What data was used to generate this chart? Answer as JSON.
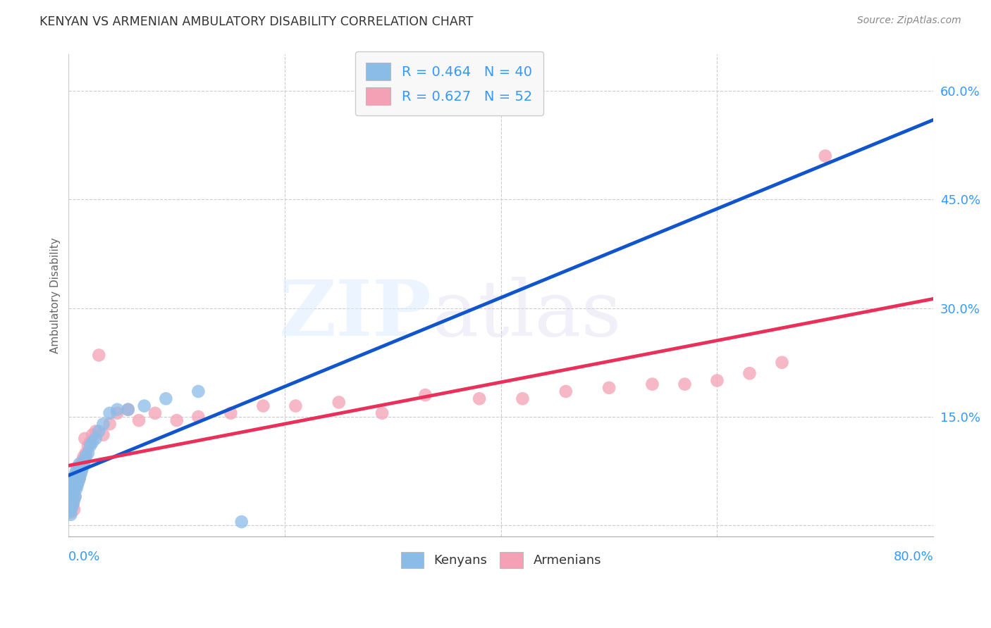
{
  "title": "KENYAN VS ARMENIAN AMBULATORY DISABILITY CORRELATION CHART",
  "source": "Source: ZipAtlas.com",
  "ylabel": "Ambulatory Disability",
  "xmin": 0.0,
  "xmax": 0.8,
  "ymin": -0.015,
  "ymax": 0.65,
  "yticks": [
    0.0,
    0.15,
    0.3,
    0.45,
    0.6
  ],
  "ytick_labels": [
    "",
    "15.0%",
    "30.0%",
    "45.0%",
    "60.0%"
  ],
  "kenyan_R": 0.464,
  "kenyan_N": 40,
  "armenian_R": 0.627,
  "armenian_N": 52,
  "kenyan_color": "#8bbce8",
  "armenian_color": "#f4a0b5",
  "kenyan_line_color": "#1155cc",
  "armenian_line_color": "#e8305a",
  "kenyan_points_x": [
    0.001,
    0.002,
    0.002,
    0.003,
    0.003,
    0.004,
    0.004,
    0.004,
    0.005,
    0.005,
    0.005,
    0.006,
    0.006,
    0.007,
    0.007,
    0.008,
    0.008,
    0.009,
    0.009,
    0.01,
    0.01,
    0.011,
    0.012,
    0.013,
    0.014,
    0.015,
    0.016,
    0.018,
    0.02,
    0.022,
    0.025,
    0.028,
    0.032,
    0.038,
    0.045,
    0.055,
    0.07,
    0.09,
    0.12,
    0.16
  ],
  "kenyan_points_y": [
    0.02,
    0.015,
    0.06,
    0.025,
    0.065,
    0.03,
    0.045,
    0.055,
    0.035,
    0.05,
    0.06,
    0.04,
    0.07,
    0.05,
    0.075,
    0.055,
    0.08,
    0.06,
    0.075,
    0.065,
    0.085,
    0.07,
    0.075,
    0.08,
    0.085,
    0.09,
    0.095,
    0.1,
    0.11,
    0.115,
    0.12,
    0.13,
    0.14,
    0.155,
    0.16,
    0.16,
    0.165,
    0.175,
    0.185,
    0.005
  ],
  "armenian_points_x": [
    0.001,
    0.002,
    0.003,
    0.003,
    0.004,
    0.004,
    0.005,
    0.005,
    0.006,
    0.006,
    0.007,
    0.007,
    0.008,
    0.008,
    0.009,
    0.01,
    0.01,
    0.011,
    0.012,
    0.013,
    0.014,
    0.015,
    0.016,
    0.018,
    0.02,
    0.022,
    0.025,
    0.028,
    0.032,
    0.038,
    0.045,
    0.055,
    0.065,
    0.08,
    0.1,
    0.12,
    0.15,
    0.18,
    0.21,
    0.25,
    0.29,
    0.33,
    0.38,
    0.42,
    0.46,
    0.5,
    0.54,
    0.57,
    0.6,
    0.63,
    0.66,
    0.7
  ],
  "armenian_points_y": [
    0.02,
    0.018,
    0.025,
    0.035,
    0.03,
    0.045,
    0.022,
    0.05,
    0.04,
    0.06,
    0.055,
    0.065,
    0.06,
    0.07,
    0.068,
    0.065,
    0.08,
    0.075,
    0.085,
    0.09,
    0.095,
    0.12,
    0.1,
    0.11,
    0.115,
    0.125,
    0.13,
    0.235,
    0.125,
    0.14,
    0.155,
    0.16,
    0.145,
    0.155,
    0.145,
    0.15,
    0.155,
    0.165,
    0.165,
    0.17,
    0.155,
    0.18,
    0.175,
    0.175,
    0.185,
    0.19,
    0.195,
    0.195,
    0.2,
    0.21,
    0.225,
    0.51
  ],
  "background_color": "#ffffff",
  "grid_color": "#cccccc",
  "title_color": "#333333",
  "axis_label_color": "#3399ff",
  "legend_box_color": "#f8f8f8"
}
